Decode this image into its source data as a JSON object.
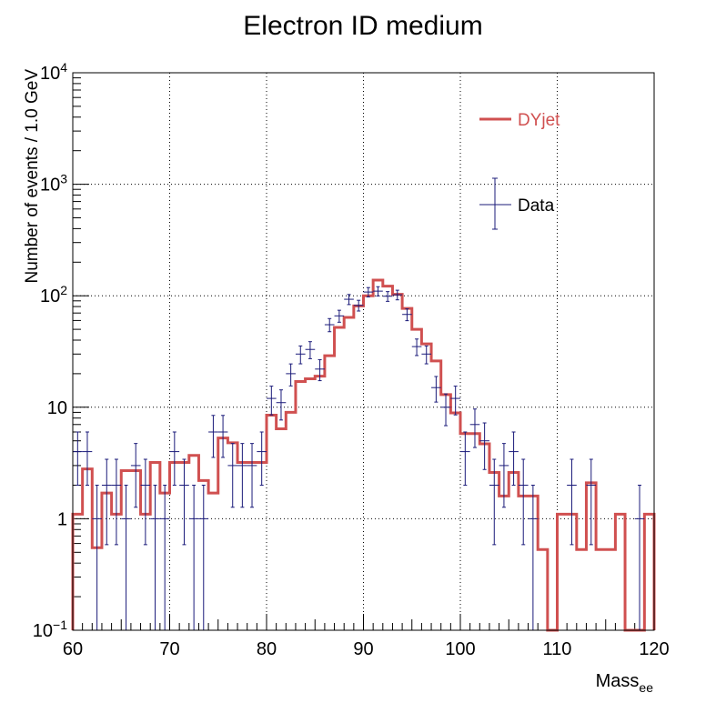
{
  "chart_data": {
    "type": "line",
    "title": "Electron ID medium",
    "xlabel": {
      "main": "Mass",
      "sub": "ee"
    },
    "ylabel": "Number of events / 1.0 GeV",
    "xlim": [
      60,
      120
    ],
    "ylim": [
      0.1,
      10000
    ],
    "yscale": "log",
    "grid": true,
    "legend_position": "top-right",
    "x_ticks": [
      60,
      70,
      80,
      90,
      100,
      110,
      120
    ],
    "y_ticks": [
      {
        "value": 0.1,
        "base": "10",
        "exp": "−1"
      },
      {
        "value": 1,
        "label": "1"
      },
      {
        "value": 10,
        "label": "10"
      },
      {
        "value": 100,
        "base": "10",
        "exp": "2"
      },
      {
        "value": 1000,
        "base": "10",
        "exp": "3"
      },
      {
        "value": 10000,
        "base": "10",
        "exp": "4"
      }
    ],
    "bin_edges_start": 60,
    "bin_width": 1,
    "series": [
      {
        "name": "DYjet",
        "style": "histogram-step",
        "color": "#d05050",
        "values": [
          1.1,
          2.8,
          0.55,
          1.7,
          1.1,
          2.7,
          2.7,
          1.1,
          3.2,
          1.7,
          3.2,
          3.2,
          3.7,
          2.2,
          1.7,
          5.3,
          4.8,
          3.2,
          3.2,
          3.2,
          8.5,
          6.4,
          9.0,
          17,
          18,
          19,
          29,
          52,
          64,
          81,
          100,
          138,
          122,
          103,
          77,
          50,
          37,
          26,
          13,
          8.9,
          5.8,
          5.8,
          4.7,
          2.6,
          1.6,
          2.6,
          1.6,
          1.6,
          0.53,
          0.1,
          1.1,
          1.1,
          0.53,
          2.1,
          0.53,
          0.53,
          1.1,
          0.1,
          0.1,
          1.1
        ]
      },
      {
        "name": "Data",
        "style": "points-with-errors",
        "color": "#1b1b7a",
        "values": [
          4,
          4,
          1,
          2,
          2,
          1,
          3,
          2,
          1,
          1,
          4,
          2,
          1,
          1,
          6,
          6,
          3,
          3,
          3,
          4,
          12,
          11,
          20,
          30,
          33,
          22,
          55,
          66,
          93,
          82,
          108,
          110,
          99,
          102,
          68,
          35,
          30,
          15,
          10,
          12,
          4,
          7,
          5,
          2,
          3,
          4,
          2,
          1,
          0,
          0,
          0,
          2,
          0,
          2,
          0,
          0,
          0,
          0,
          1,
          0
        ]
      }
    ]
  }
}
